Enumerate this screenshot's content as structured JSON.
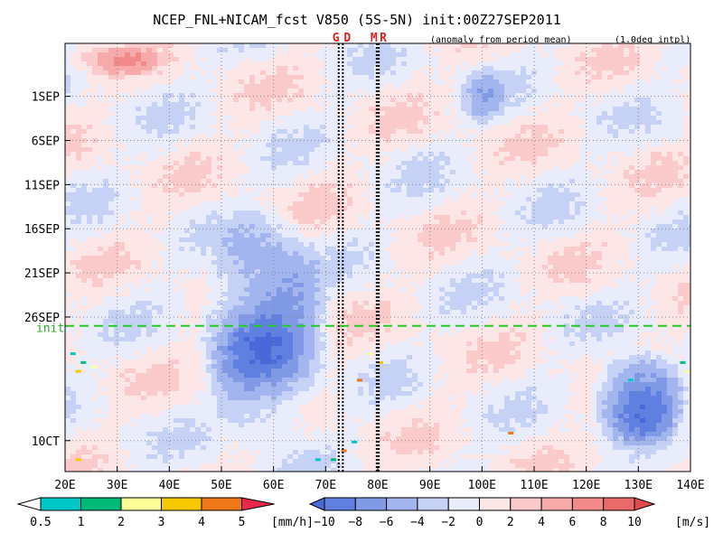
{
  "chart_data": {
    "type": "heatmap",
    "title": "NCEP_FNL+NICAM_fcst V850 (5S-5N) init:00Z27SEP2011",
    "subtitle_left": "(anomaly from period mean)",
    "subtitle_right": "(1.0deg intpl)",
    "x_ticks": [
      "20E",
      "30E",
      "40E",
      "50E",
      "60E",
      "70E",
      "80E",
      "90E",
      "100E",
      "110E",
      "120E",
      "130E",
      "140E"
    ],
    "x_range_deg": [
      20,
      140
    ],
    "y_ticks": [
      "1SEP",
      "6SEP",
      "11SEP",
      "16SEP",
      "21SEP",
      "26SEP",
      "10CT"
    ],
    "y_ticks_days_from_26aug": [
      6,
      11,
      16,
      21,
      26,
      31,
      45
    ],
    "y_range_days_from_26aug": [
      0,
      48.5
    ],
    "init_label": "init",
    "init_day_from_26aug": 32,
    "init_line_color": "#22cc22",
    "station_markers": [
      {
        "label": "G",
        "lon": 72.5
      },
      {
        "label": "D",
        "lon": 73.3
      },
      {
        "label": "M",
        "lon": 79.8
      },
      {
        "label": "R",
        "lon": 80.2
      }
    ],
    "precip_colorbar": {
      "labels": [
        "0.5",
        "1",
        "2",
        "3",
        "4",
        "5"
      ],
      "unit": "[mm/h]",
      "colors": [
        "#ffffff",
        "#00c8c8",
        "#00b878",
        "#ffff99",
        "#f5c800",
        "#f07818",
        "#e8284a"
      ]
    },
    "wind_colorbar": {
      "labels": [
        "−10",
        "−8",
        "−6",
        "−4",
        "−2",
        "0",
        "2",
        "4",
        "6",
        "8",
        "10"
      ],
      "unit": "[m/s]",
      "colors": [
        "#4a69d8",
        "#5f80e0",
        "#809ae6",
        "#a3b5ee",
        "#c6d2f5",
        "#e8ecfb",
        "#fde6e6",
        "#fbcaca",
        "#f7aaaa",
        "#f28a8a",
        "#ea6a6a",
        "#e04a4a"
      ]
    },
    "features": [
      {
        "type": "negative_anomaly_band",
        "lon_start": 45,
        "lon_end": 72,
        "day_start": 18,
        "day_end": 47,
        "min_value": -8
      },
      {
        "type": "negative_anomaly_patch",
        "lon_start": 120,
        "lon_end": 140,
        "day_start": 34,
        "day_end": 46,
        "min_value": -10
      },
      {
        "type": "negative_anomaly_patch",
        "lon_start": 95,
        "lon_end": 105,
        "day_start": 2,
        "day_end": 10,
        "min_value": -4
      },
      {
        "type": "positive_anomaly_patch",
        "lon_start": 20,
        "lon_end": 40,
        "day_start": 0,
        "day_end": 4,
        "max_value": 4
      }
    ]
  }
}
